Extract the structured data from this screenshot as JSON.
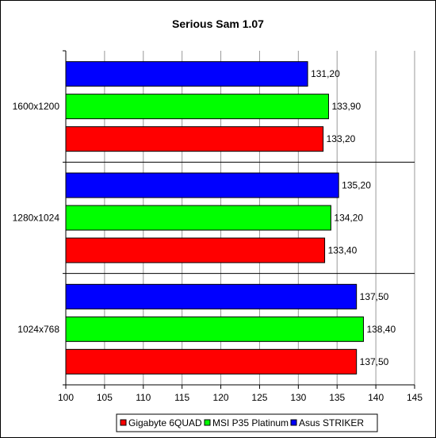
{
  "chart_data": {
    "type": "bar",
    "orientation": "horizontal",
    "title": "Serious Sam 1.07",
    "xlabel": "",
    "ylabel": "",
    "categories": [
      "1600x1200",
      "1280x1024",
      "1024x768"
    ],
    "xlim": [
      100,
      145
    ],
    "xticks": [
      "100",
      "105",
      "110",
      "115",
      "120",
      "125",
      "130",
      "135",
      "140",
      "145"
    ],
    "grid": "vertical",
    "legend_position": "bottom",
    "series": [
      {
        "name": "Asus STRIKER",
        "color": "#0000ff",
        "values": [
          131.2,
          135.2,
          137.5
        ],
        "labels": [
          "131,20",
          "135,20",
          "137,50"
        ]
      },
      {
        "name": "MSI P35 Platinum",
        "color": "#00ff00",
        "values": [
          133.9,
          134.2,
          138.4
        ],
        "labels": [
          "133,90",
          "134,20",
          "138,40"
        ]
      },
      {
        "name": "Gigabyte 6QUAD",
        "color": "#ff0000",
        "values": [
          133.2,
          133.4,
          137.5
        ],
        "labels": [
          "133,20",
          "133,40",
          "137,50"
        ]
      }
    ],
    "legend_order": [
      "Gigabyte 6QUAD",
      "MSI P35 Platinum",
      "Asus STRIKER"
    ]
  }
}
